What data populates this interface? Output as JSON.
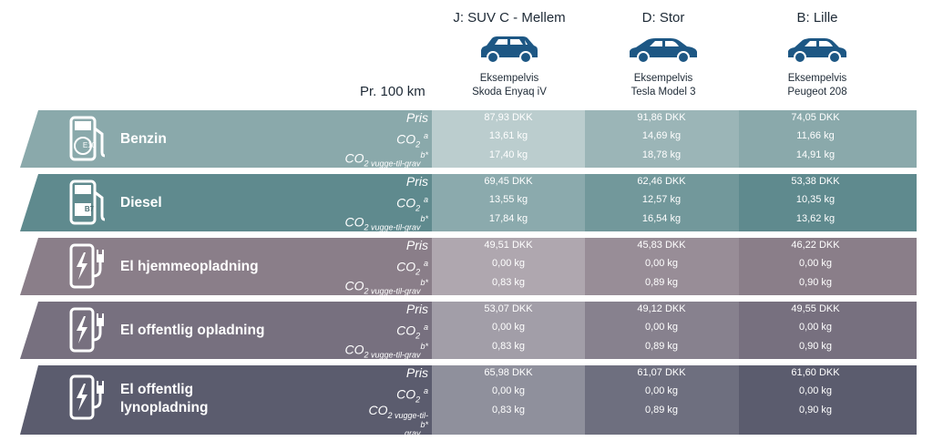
{
  "header": {
    "per_100km": "Pr. 100 km",
    "columns": [
      {
        "segment": "J: SUV C - Mellem",
        "example_label": "Eksempelvis",
        "example_model": "Skoda Enyaq iV",
        "icon": "suv-car-icon"
      },
      {
        "segment": "D: Stor",
        "example_label": "Eksempelvis",
        "example_model": "Tesla Model 3",
        "icon": "sedan-car-icon"
      },
      {
        "segment": "B: Lille",
        "example_label": "Eksempelvis",
        "example_model": "Peugeot 208",
        "icon": "small-car-icon"
      }
    ]
  },
  "row_labels": {
    "price": "Pris",
    "co2": "CO",
    "co2_sub": "2",
    "co2_sup": "a",
    "co2_lc": "CO",
    "co2_lc_sub": "2 vugge-til-grav",
    "co2_lc_sub_wrap": "2 vugge-til-",
    "co2_lc_wrap": "grav",
    "co2_lc_sup": "b*"
  },
  "colors": {
    "benzin": "#8aa9ab",
    "diesel": "#5f8a8e",
    "el_hjemme": "#8a7e89",
    "el_offentlig": "#77707f",
    "el_lyn": "#5b5c6e",
    "car": "#1d5784"
  },
  "fuels": [
    {
      "name": "Benzin",
      "icon": "gas-pump-icon",
      "badge": "E10",
      "values": [
        [
          "87,93 DKK",
          "13,61 kg",
          "17,40 kg"
        ],
        [
          "91,86 DKK",
          "14,69 kg",
          "18,78 kg"
        ],
        [
          "74,05 DKK",
          "11,66 kg",
          "14,91 kg"
        ]
      ]
    },
    {
      "name": "Diesel",
      "icon": "gas-pump-icon",
      "badge": "B7",
      "values": [
        [
          "69,45 DKK",
          "13,55 kg",
          "17,84 kg"
        ],
        [
          "62,46 DKK",
          "12,57 kg",
          "16,54 kg"
        ],
        [
          "53,38 DKK",
          "10,35 kg",
          "13,62 kg"
        ]
      ]
    },
    {
      "name": "El hjemmeopladning",
      "icon": "ev-charger-icon",
      "values": [
        [
          "49,51 DKK",
          "0,00 kg",
          "0,83 kg"
        ],
        [
          "45,83 DKK",
          "0,00 kg",
          "0,89 kg"
        ],
        [
          "46,22 DKK",
          "0,00 kg",
          "0,90 kg"
        ]
      ]
    },
    {
      "name": "El offentlig opladning",
      "icon": "ev-charger-icon",
      "values": [
        [
          "53,07 DKK",
          "0,00 kg",
          "0,83 kg"
        ],
        [
          "49,12 DKK",
          "0,00 kg",
          "0,89 kg"
        ],
        [
          "49,55 DKK",
          "0,00 kg",
          "0,90 kg"
        ]
      ]
    },
    {
      "name_line1": "El offentlig",
      "name_line2": "lynopladning",
      "icon": "ev-charger-icon",
      "values": [
        [
          "65,98 DKK",
          "0,00 kg",
          "0,83 kg"
        ],
        [
          "61,07 DKK",
          "0,00 kg",
          "0,89 kg"
        ],
        [
          "61,60 DKK",
          "0,00 kg",
          "0,90 kg"
        ]
      ]
    }
  ]
}
